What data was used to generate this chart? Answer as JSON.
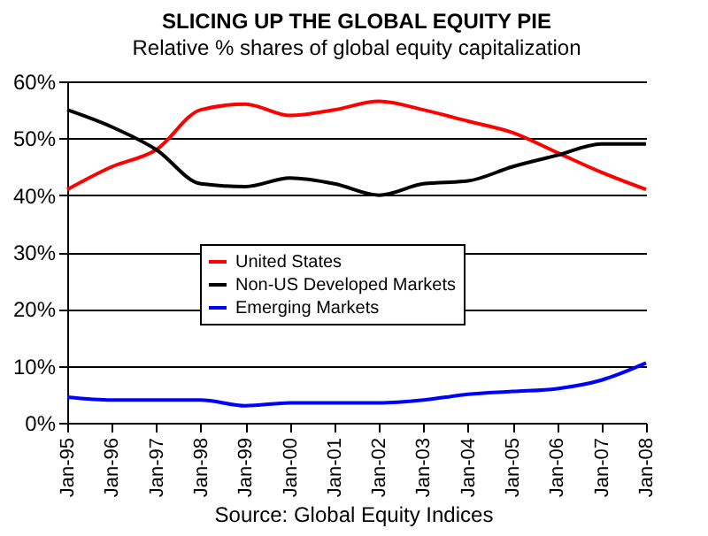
{
  "chart_data": {
    "type": "line",
    "title": "SLICING UP THE GLOBAL EQUITY PIE",
    "subtitle": "Relative % shares of global equity capitalization",
    "categories": [
      "Jan-95",
      "Jan-96",
      "Jan-97",
      "Jan-98",
      "Jan-99",
      "Jan-00",
      "Jan-01",
      "Jan-02",
      "Jan-03",
      "Jan-04",
      "Jan-05",
      "Jan-06",
      "Jan-07",
      "Jan-08"
    ],
    "series": [
      {
        "name": "United States",
        "color": "#ff0000",
        "values": [
          41,
          45,
          48,
          55,
          56,
          54,
          55,
          56.5,
          55,
          53,
          51,
          47.5,
          44,
          41
        ]
      },
      {
        "name": "Non-US Developed Markets",
        "color": "#000000",
        "values": [
          55,
          52,
          48,
          42,
          41.5,
          43,
          42,
          40,
          42,
          42.5,
          45,
          47,
          49,
          49
        ]
      },
      {
        "name": "Emerging Markets",
        "color": "#0000ff",
        "values": [
          4.5,
          4,
          4,
          4,
          3,
          3.5,
          3.5,
          3.5,
          4,
          5,
          5.5,
          6,
          7.5,
          10.5
        ]
      }
    ],
    "ylim": [
      0,
      60
    ],
    "yticks": [
      {
        "value": 0,
        "label": "0%"
      },
      {
        "value": 10,
        "label": "10%"
      },
      {
        "value": 20,
        "label": "20%"
      },
      {
        "value": 30,
        "label": "30%"
      },
      {
        "value": 40,
        "label": "40%"
      },
      {
        "value": 50,
        "label": "50%"
      },
      {
        "value": 60,
        "label": "60%"
      }
    ],
    "grid": "y",
    "legend": "bottom",
    "marker": "none",
    "line_style": "solid",
    "annotations": [
      "Source: Global Equity Indices"
    ]
  }
}
